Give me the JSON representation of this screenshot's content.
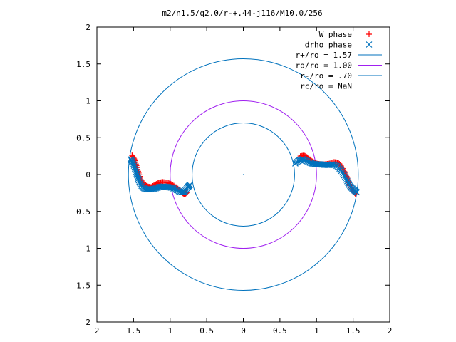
{
  "chart_data": {
    "type": "scatter",
    "title": "m2/n1.5/q2.0/r-+.44-j116/M10.0/256",
    "xlabel": "",
    "ylabel": "",
    "xlim": [
      -2,
      2
    ],
    "ylim": [
      -2,
      2
    ],
    "grid": false,
    "legend_position": "top-right",
    "x_ticks": [
      {
        "value": -2,
        "label": "2"
      },
      {
        "value": -1.5,
        "label": "1.5"
      },
      {
        "value": -1,
        "label": "1"
      },
      {
        "value": -0.5,
        "label": "0.5"
      },
      {
        "value": 0,
        "label": "0"
      },
      {
        "value": 0.5,
        "label": "0.5"
      },
      {
        "value": 1,
        "label": "1"
      },
      {
        "value": 1.5,
        "label": "1.5"
      },
      {
        "value": 2,
        "label": "2"
      }
    ],
    "y_ticks": [
      {
        "value": 2,
        "label": "2"
      },
      {
        "value": 1.5,
        "label": "1.5"
      },
      {
        "value": 1,
        "label": "1"
      },
      {
        "value": 0.5,
        "label": "0.5"
      },
      {
        "value": 0,
        "label": "0"
      },
      {
        "value": -0.5,
        "label": "0.5"
      },
      {
        "value": -1,
        "label": "1"
      },
      {
        "value": -1.5,
        "label": "1.5"
      },
      {
        "value": -2,
        "label": "2"
      }
    ],
    "series": [
      {
        "name": "W phase",
        "marker": "plus",
        "color": "#ff0000",
        "segments": [
          [
            [
              -1.52,
              0.26
            ],
            [
              -1.49,
              0.21
            ],
            [
              -1.46,
              0.12
            ],
            [
              -1.43,
              0.02
            ],
            [
              -1.4,
              -0.07
            ],
            [
              -1.36,
              -0.13
            ],
            [
              -1.31,
              -0.16
            ],
            [
              -1.26,
              -0.17
            ],
            [
              -1.21,
              -0.14
            ],
            [
              -1.16,
              -0.11
            ],
            [
              -1.1,
              -0.1
            ],
            [
              -1.04,
              -0.11
            ],
            [
              -0.98,
              -0.13
            ],
            [
              -0.92,
              -0.17
            ],
            [
              -0.87,
              -0.21
            ],
            [
              -0.83,
              -0.25
            ],
            [
              -0.8,
              -0.27
            ],
            [
              -0.77,
              -0.24
            ]
          ],
          [
            [
              0.78,
              0.25
            ],
            [
              0.83,
              0.26
            ],
            [
              0.88,
              0.23
            ],
            [
              0.94,
              0.18
            ],
            [
              1.0,
              0.15
            ],
            [
              1.06,
              0.14
            ],
            [
              1.12,
              0.14
            ],
            [
              1.18,
              0.15
            ],
            [
              1.24,
              0.17
            ],
            [
              1.3,
              0.16
            ],
            [
              1.35,
              0.1
            ],
            [
              1.39,
              0.02
            ],
            [
              1.43,
              -0.07
            ],
            [
              1.46,
              -0.15
            ],
            [
              1.5,
              -0.22
            ],
            [
              1.53,
              -0.26
            ]
          ]
        ]
      },
      {
        "name": "drho phase",
        "marker": "cross",
        "color": "#0072bd",
        "segments": [
          [
            [
              -1.54,
              0.21
            ],
            [
              -1.51,
              0.16
            ],
            [
              -1.48,
              0.08
            ],
            [
              -1.45,
              -0.01
            ],
            [
              -1.42,
              -0.1
            ],
            [
              -1.38,
              -0.17
            ],
            [
              -1.33,
              -0.2
            ],
            [
              -1.27,
              -0.2
            ],
            [
              -1.21,
              -0.19
            ],
            [
              -1.15,
              -0.17
            ],
            [
              -1.09,
              -0.16
            ],
            [
              -1.03,
              -0.17
            ],
            [
              -0.97,
              -0.18
            ],
            [
              -0.91,
              -0.21
            ],
            [
              -0.85,
              -0.24
            ],
            [
              -0.8,
              -0.23
            ],
            [
              -0.76,
              -0.17
            ],
            [
              -0.73,
              -0.14
            ]
          ],
          [
            [
              0.71,
              0.15
            ],
            [
              0.76,
              0.19
            ],
            [
              0.81,
              0.21
            ],
            [
              0.87,
              0.18
            ],
            [
              0.93,
              0.15
            ],
            [
              0.99,
              0.14
            ],
            [
              1.05,
              0.14
            ],
            [
              1.11,
              0.13
            ],
            [
              1.17,
              0.13
            ],
            [
              1.23,
              0.14
            ],
            [
              1.29,
              0.11
            ],
            [
              1.34,
              0.05
            ],
            [
              1.39,
              -0.03
            ],
            [
              1.43,
              -0.11
            ],
            [
              1.47,
              -0.17
            ],
            [
              1.51,
              -0.21
            ],
            [
              1.55,
              -0.24
            ]
          ]
        ]
      },
      {
        "name": "r+/ro = 1.57",
        "type": "circle",
        "radius": 1.57,
        "color": "#0072bd"
      },
      {
        "name": "ro/ro = 1.00",
        "type": "circle",
        "radius": 1.0,
        "color": "#a020f0"
      },
      {
        "name": "r-/ro = .70",
        "type": "circle",
        "radius": 0.7,
        "color": "#0072bd"
      },
      {
        "name": "rc/ro = NaN",
        "type": "circle",
        "radius": null,
        "color": "#00bfff"
      }
    ]
  }
}
